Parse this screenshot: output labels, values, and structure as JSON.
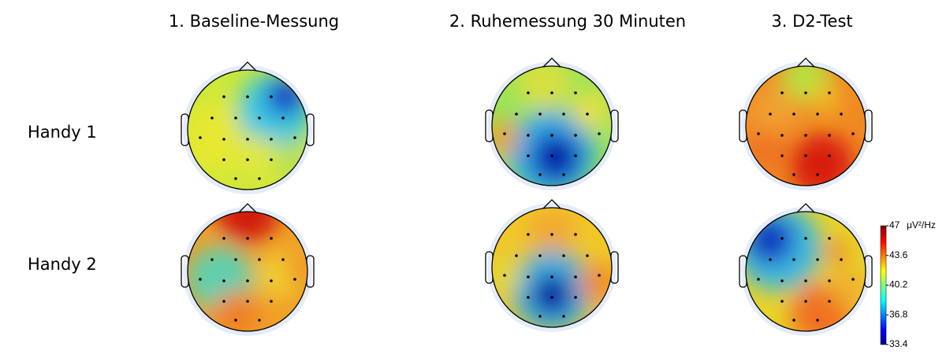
{
  "columns": [
    "1. Baseline-Messung",
    "2. Ruhemessung 30 Minuten",
    "3. D2-Test"
  ],
  "rows": [
    "Handy 1",
    "Handy 2"
  ],
  "colorbar": {
    "unit": "μV²/Hz",
    "ticks": [
      47,
      43.6,
      40.2,
      36.8,
      33.4
    ]
  }
}
